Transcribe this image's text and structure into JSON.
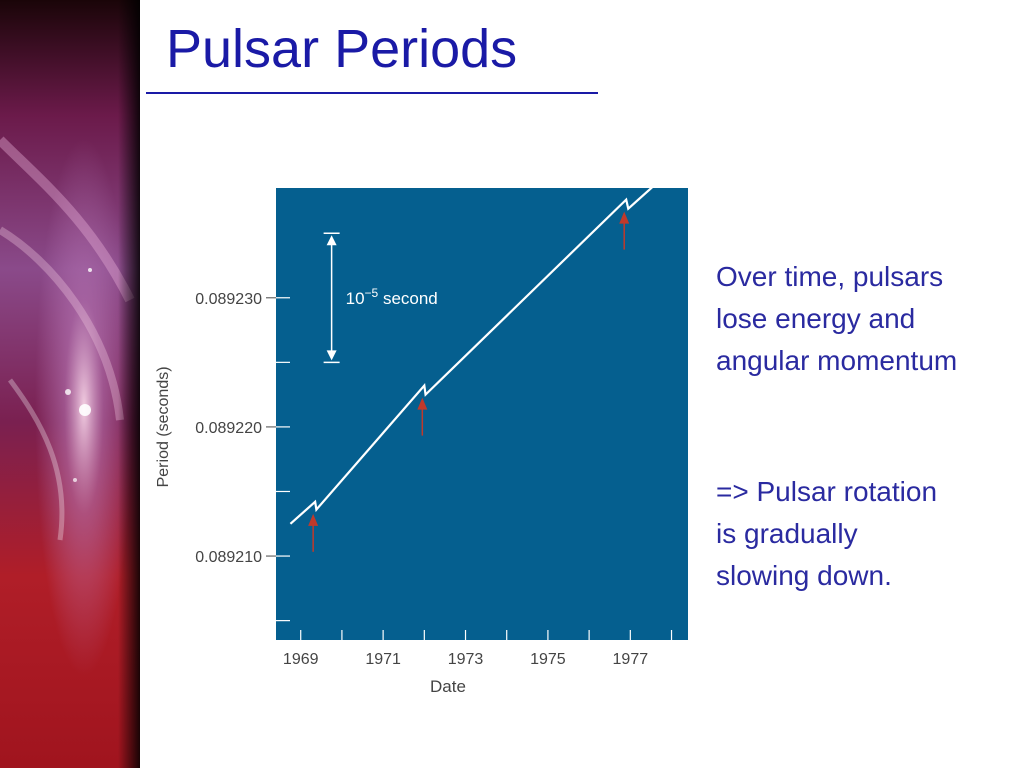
{
  "slide": {
    "title": "Pulsar Periods",
    "text_block_1": [
      "Over time, pulsars",
      "lose energy and",
      "angular momentum"
    ],
    "text_block_2": [
      "=> Pulsar rotation",
      "is gradually",
      "slowing down."
    ]
  },
  "colors": {
    "title": "#1a1aa6",
    "text": "#2a2aa0",
    "plot_background": "#055f8f",
    "line": "#ffffff",
    "glitch_arrows": "#c0392b"
  },
  "chart_data": {
    "type": "line",
    "title": "",
    "xlabel": "Date",
    "ylabel": "Period (seconds)",
    "xlim": [
      1968.4,
      1978.4
    ],
    "ylim": [
      0.0892035,
      0.0892385
    ],
    "x_ticks": [
      "1969",
      "1971",
      "1973",
      "1975",
      "1977"
    ],
    "y_ticks": [
      "0.089210",
      "0.089220",
      "0.089230"
    ],
    "scale_bar": {
      "label_base": "10",
      "label_exp": "−5",
      "label_unit": "second",
      "length": 1e-05
    },
    "series": [
      {
        "x": [
          1968.75,
          1969.35,
          1969.38,
          1972.0,
          1972.03,
          1976.9,
          1976.95,
          1977.65
        ],
        "y": [
          0.0892125,
          0.0892142,
          0.0892136,
          0.0892232,
          0.0892225,
          0.0892376,
          0.0892369,
          0.0892389
        ]
      }
    ],
    "glitches": [
      1969.35,
      1972.0,
      1976.9
    ],
    "grid": false
  }
}
